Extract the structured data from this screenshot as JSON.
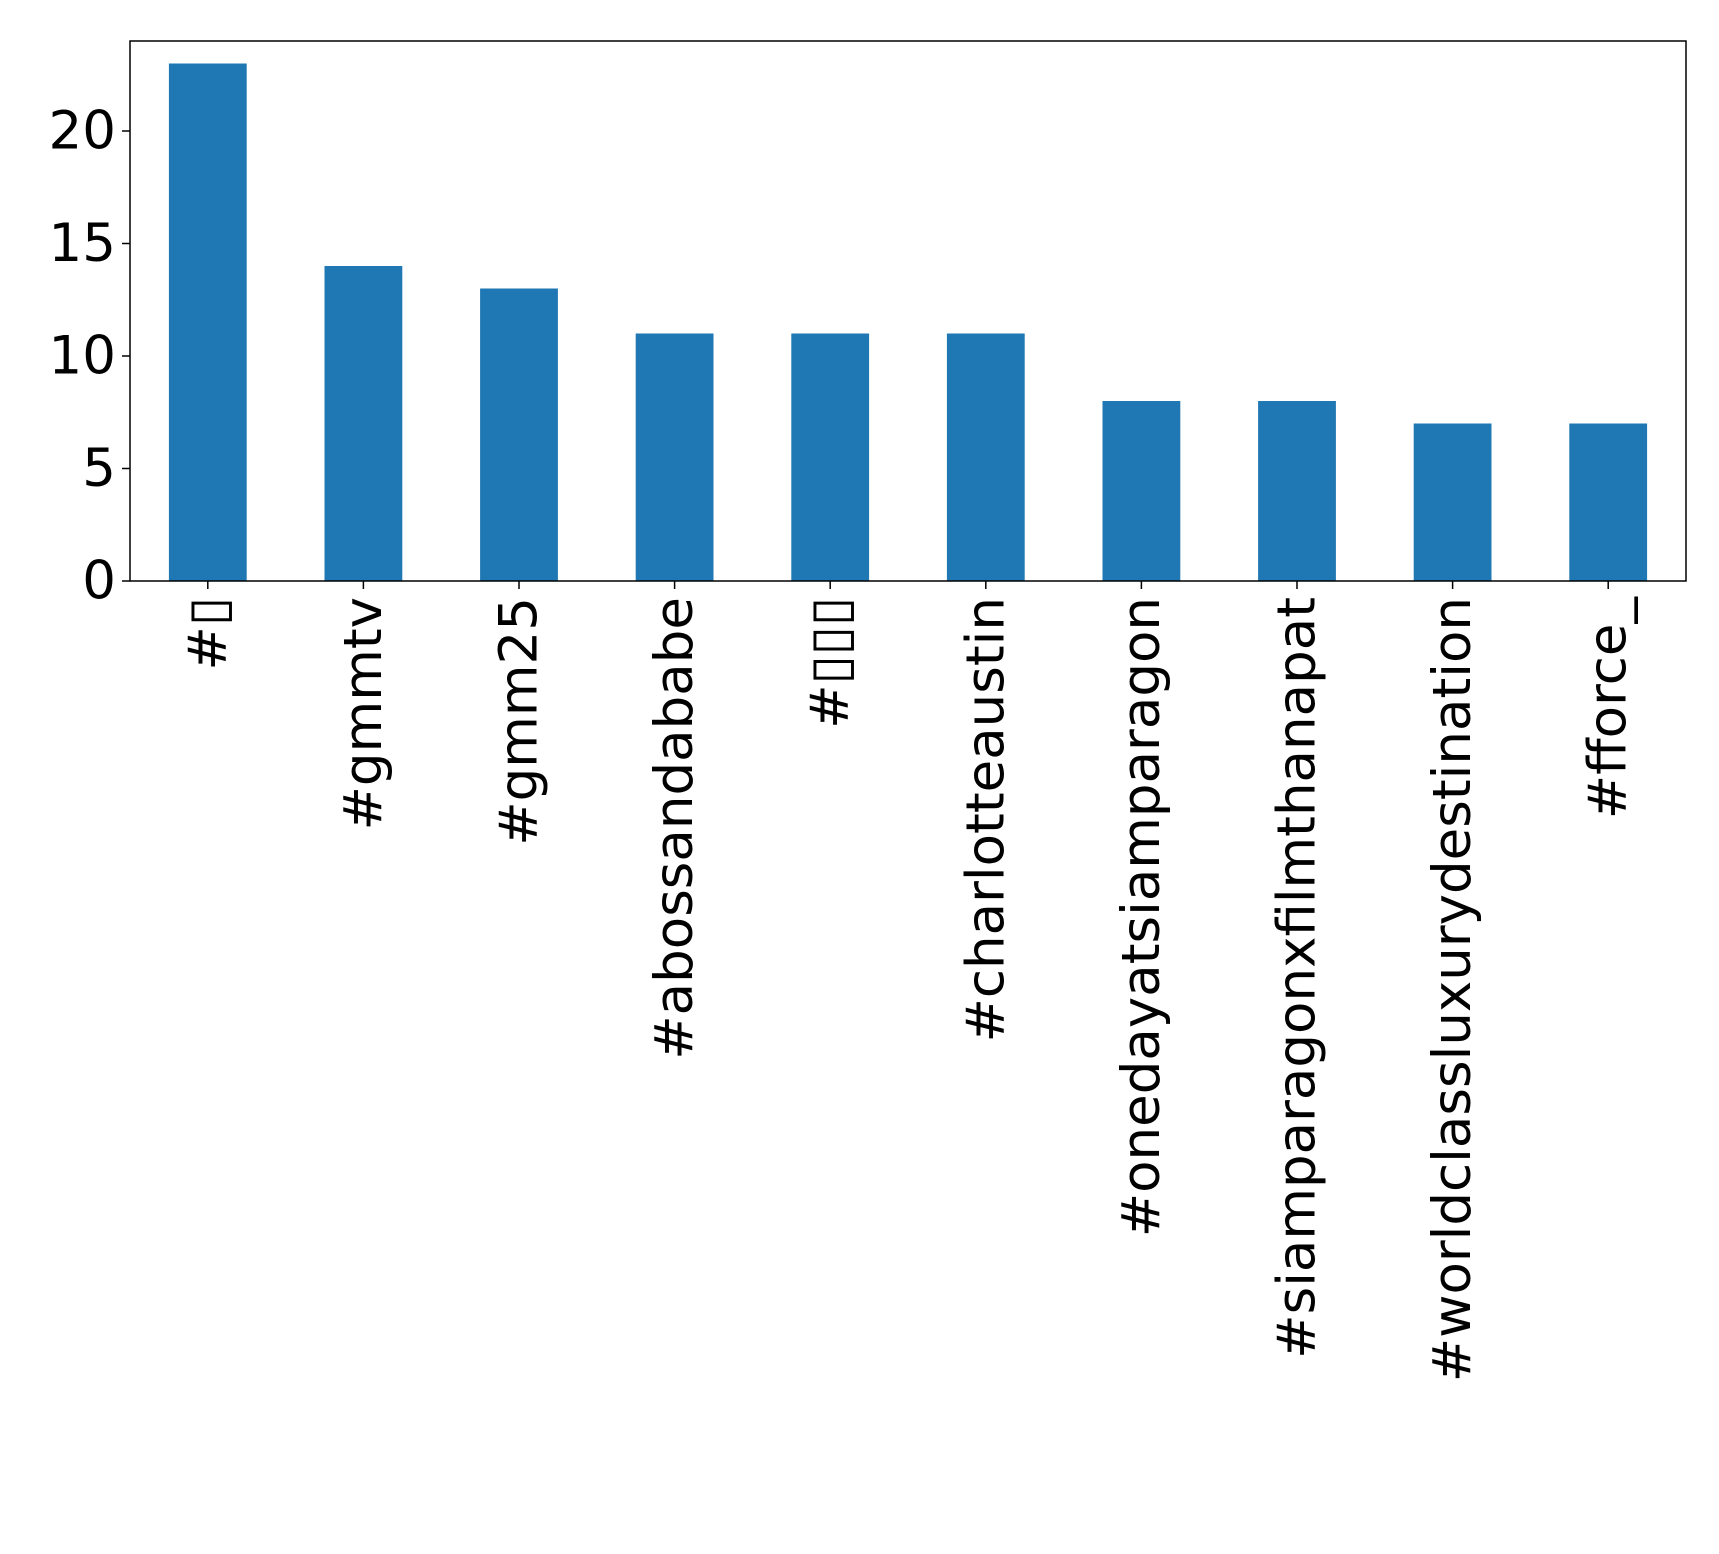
{
  "chart_data": {
    "type": "bar",
    "title": "",
    "xlabel": "",
    "ylabel": "",
    "categories": [
      "#▯",
      "#gmmtv",
      "#gmm25",
      "#abossandababe",
      "#▯▯▯",
      "#charlotteaustin",
      "#onedayatsiamparagon",
      "#siamparagonxfilmthanapat",
      "#worldclassluxurydestination",
      "#fforce_"
    ],
    "values": [
      23,
      14,
      13,
      11,
      11,
      11,
      8,
      8,
      7,
      7
    ],
    "ylim": [
      0,
      24
    ],
    "yticks": [
      0,
      5,
      10,
      15,
      20
    ],
    "bar_color": "#1f77b4",
    "grid": false,
    "legend": "none"
  }
}
